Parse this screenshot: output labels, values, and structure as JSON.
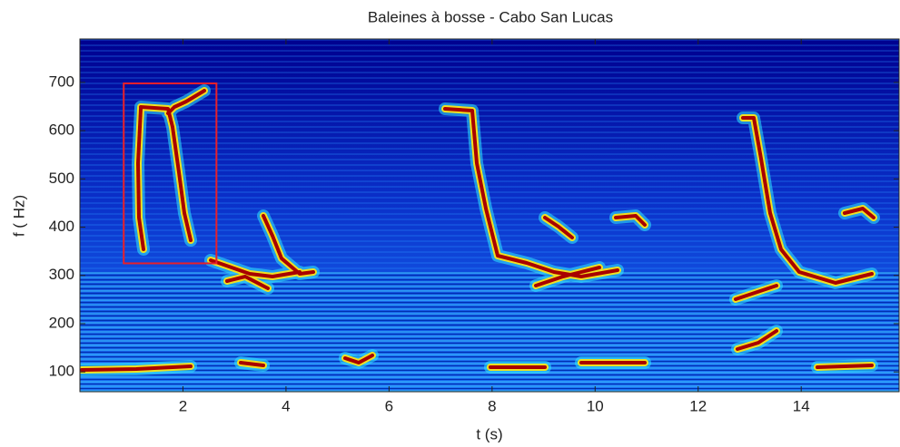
{
  "chart_data": {
    "type": "spectrogram",
    "title": "Baleines à bosse - Cabo San Lucas",
    "x_label": "t (s)",
    "y_label": "f ( Hz)",
    "xlim": [
      0,
      15.9
    ],
    "ylim": [
      59,
      790
    ],
    "xticks": [
      2,
      4,
      6,
      8,
      10,
      12,
      14
    ],
    "yticks": [
      100,
      200,
      300,
      400,
      500,
      600,
      700
    ],
    "highlight": {
      "x": [
        0.85,
        2.65
      ],
      "y": [
        325,
        698
      ],
      "color": "#e8202a"
    }
  }
}
